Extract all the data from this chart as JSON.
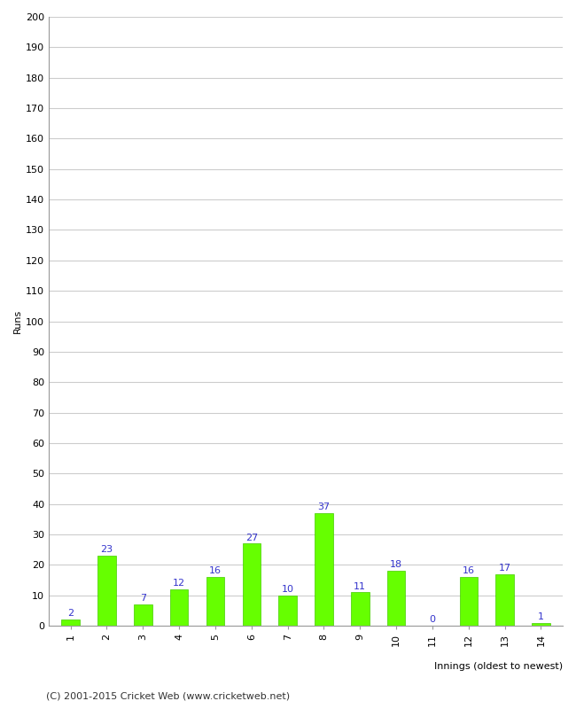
{
  "innings": [
    1,
    2,
    3,
    4,
    5,
    6,
    7,
    8,
    9,
    10,
    11,
    12,
    13,
    14
  ],
  "runs": [
    2,
    23,
    7,
    12,
    16,
    27,
    10,
    37,
    11,
    18,
    0,
    16,
    17,
    1
  ],
  "bar_color": "#66ff00",
  "bar_edge_color": "#44cc00",
  "label_color": "#3333cc",
  "ylabel": "Runs",
  "xlabel": "Innings (oldest to newest)",
  "ylim": [
    0,
    200
  ],
  "yticks": [
    0,
    10,
    20,
    30,
    40,
    50,
    60,
    70,
    80,
    90,
    100,
    110,
    120,
    130,
    140,
    150,
    160,
    170,
    180,
    190,
    200
  ],
  "footer": "(C) 2001-2015 Cricket Web (www.cricketweb.net)",
  "background_color": "#ffffff",
  "grid_color": "#cccccc",
  "label_fontsize": 8,
  "axis_fontsize": 8,
  "ylabel_fontsize": 8,
  "xlabel_fontsize": 8,
  "footer_fontsize": 8
}
